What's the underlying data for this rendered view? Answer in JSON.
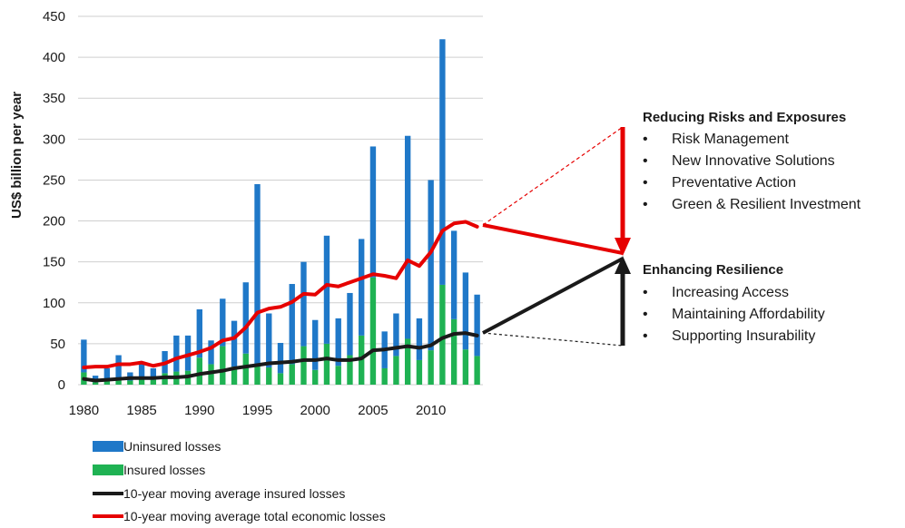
{
  "chart_data": {
    "type": "bar",
    "ylabel": "US$ billion per year",
    "ylim": [
      0,
      450
    ],
    "yticks": [
      "0",
      "50",
      "100",
      "150",
      "200",
      "250",
      "300",
      "350",
      "400",
      "450"
    ],
    "xticks": [
      "1980",
      "1985",
      "1990",
      "1995",
      "2000",
      "2005",
      "2010"
    ],
    "grid": true,
    "legend_position": "bottom",
    "categories": [
      1980,
      1981,
      1982,
      1983,
      1984,
      1985,
      1986,
      1987,
      1988,
      1989,
      1990,
      1991,
      1992,
      1993,
      1994,
      1995,
      1996,
      1997,
      1998,
      1999,
      2000,
      2001,
      2002,
      2003,
      2004,
      2005,
      2006,
      2007,
      2008,
      2009,
      2010,
      2011,
      2012,
      2013,
      2014
    ],
    "series": [
      {
        "name": "Uninsured losses",
        "kind": "bar",
        "color": "#1f78c8",
        "values": [
          40,
          8,
          15,
          28,
          10,
          18,
          14,
          27,
          44,
          43,
          59,
          29,
          58,
          56,
          87,
          220,
          66,
          37,
          98,
          103,
          61,
          132,
          58,
          76,
          118,
          160,
          45,
          52,
          248,
          51,
          208,
          300,
          108,
          94,
          75
        ]
      },
      {
        "name": "Insured losses",
        "kind": "bar",
        "color": "#1fb253",
        "values": [
          15,
          3,
          5,
          8,
          5,
          7,
          6,
          14,
          16,
          17,
          33,
          25,
          47,
          22,
          38,
          25,
          21,
          14,
          25,
          47,
          18,
          50,
          23,
          36,
          60,
          131,
          20,
          35,
          56,
          30,
          42,
          122,
          80,
          43,
          35
        ]
      },
      {
        "name": "10-year moving average insured losses",
        "kind": "line",
        "color": "#1a1a1a",
        "values": [
          7,
          5,
          6,
          7,
          8,
          8,
          8,
          9,
          9,
          10,
          13,
          15,
          17,
          20,
          22,
          24,
          26,
          27,
          28,
          30,
          30,
          32,
          30,
          30,
          32,
          42,
          43,
          45,
          47,
          45,
          48,
          57,
          62,
          63,
          60
        ]
      },
      {
        "name": "10-year moving average total economic losses",
        "kind": "line",
        "color": "#e60000",
        "values": [
          21,
          22,
          22,
          25,
          25,
          27,
          23,
          26,
          32,
          36,
          40,
          45,
          54,
          57,
          70,
          88,
          93,
          95,
          101,
          111,
          110,
          122,
          120,
          125,
          130,
          135,
          133,
          130,
          152,
          145,
          162,
          188,
          197,
          199,
          193
        ]
      }
    ]
  },
  "annotations": {
    "risks": {
      "title": "Reducing Risks and Exposures",
      "items": [
        "Risk Management",
        "New Innovative Solutions",
        "Preventative Action",
        "Green & Resilient Investment"
      ]
    },
    "resilience": {
      "title": "Enhancing Resilience",
      "items": [
        "Increasing Access",
        "Maintaining Affordability",
        "Supporting Insurability"
      ]
    },
    "bullet": "•"
  }
}
